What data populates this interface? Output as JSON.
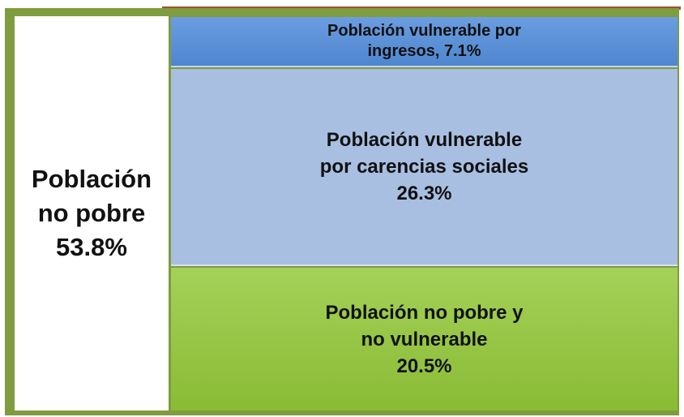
{
  "blocks": [
    {
      "lines": [
        "Población",
        "no pobre",
        "53.8%"
      ]
    },
    {
      "lines": [
        "Población vulnerable por",
        "ingresos, 7.1%"
      ]
    },
    {
      "lines": [
        "Población vulnerable",
        "por carencias sociales",
        "26.3%"
      ]
    },
    {
      "lines": [
        "Población no pobre y",
        "no vulnerable",
        "20.5%"
      ]
    }
  ]
}
